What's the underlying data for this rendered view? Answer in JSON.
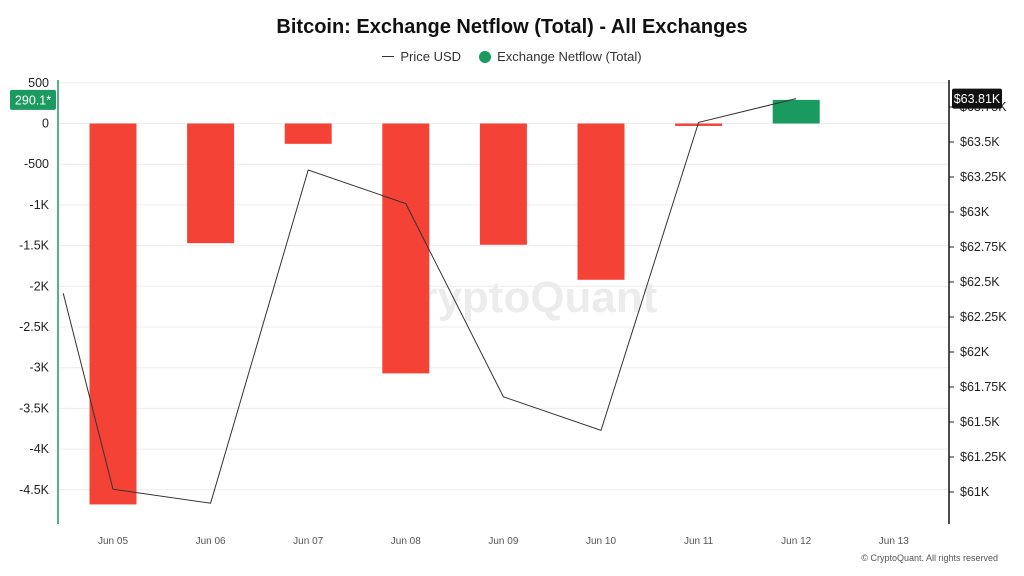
{
  "title": "Bitcoin: Exchange Netflow (Total) - All Exchanges",
  "legend": {
    "price_label": "Price USD",
    "netflow_label": "Exchange Netflow (Total)"
  },
  "colors": {
    "positive": "#1a9a5e",
    "negative": "#f44336",
    "price_line": "#333333",
    "right_badge": "#111111"
  },
  "watermark": "CryptoQuant",
  "copyright": "© CryptoQuant. All rights reserved",
  "current_value_badge": "290.1*",
  "current_price_badge": "$63.81K",
  "chart_data": {
    "type": "bar",
    "title": "Bitcoin: Exchange Netflow (Total) - All Exchanges",
    "categories": [
      "Jun 05",
      "Jun 06",
      "Jun 07",
      "Jun 08",
      "Jun 09",
      "Jun 10",
      "Jun 11",
      "Jun 12",
      "Jun 13"
    ],
    "series": [
      {
        "name": "Exchange Netflow (Total)",
        "type": "bar",
        "axis": "left",
        "values": [
          -4680,
          -1470,
          -250,
          -3070,
          -1490,
          -1920,
          -30,
          290.1,
          null
        ]
      },
      {
        "name": "Price USD",
        "type": "line",
        "axis": "right",
        "x": [
          "Jun 04",
          "Jun 05",
          "Jun 06",
          "Jun 07",
          "Jun 08",
          "Jun 09",
          "Jun 10",
          "Jun 11",
          "Jun 12"
        ],
        "values": [
          62420,
          61020,
          60920,
          63300,
          63060,
          61680,
          61440,
          63640,
          63810
        ]
      }
    ],
    "left_axis": {
      "ylim": [
        -5000,
        500
      ],
      "ticks": [
        500,
        0,
        -500,
        -1000,
        -1500,
        -2000,
        -2500,
        -3000,
        -3500,
        -4000,
        -4500
      ],
      "tick_labels": [
        "500",
        "0",
        "-500",
        "-1K",
        "-1.5K",
        "-2K",
        "-2.5K",
        "-3K",
        "-3.5K",
        "-4K",
        "-4.5K"
      ]
    },
    "right_axis": {
      "ylim": [
        60750,
        63900
      ],
      "ticks": [
        63750,
        63500,
        63250,
        63000,
        62750,
        62500,
        62250,
        62000,
        61750,
        61500,
        61250,
        61000
      ],
      "tick_labels": [
        "$63.75K",
        "$63.5K",
        "$63.25K",
        "$63K",
        "$62.75K",
        "$62.5K",
        "$62.25K",
        "$62K",
        "$61.75K",
        "$61.5K",
        "$61.25K",
        "$61K"
      ]
    },
    "grid": true,
    "legend_position": "top-center"
  }
}
